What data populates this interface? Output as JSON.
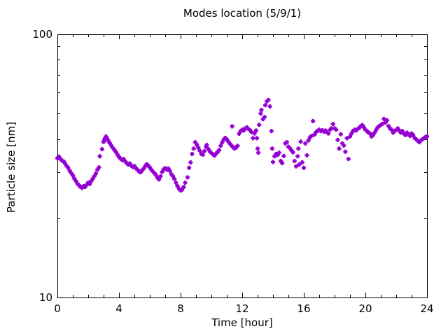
{
  "figure": {
    "background_color": "#ffffff",
    "axis_color": "#000000"
  },
  "chart_data": {
    "type": "scatter",
    "title": "Modes location (5/9/1)",
    "xlabel": "Time [hour]",
    "ylabel": "Particle size [nm]",
    "x_range": [
      0,
      24
    ],
    "y_range": [
      10,
      100
    ],
    "y_scale": "log",
    "x_major_ticks": [
      0,
      4,
      8,
      12,
      16,
      20,
      24
    ],
    "x_minor_step": 1,
    "y_major_ticks": [
      10,
      100
    ],
    "y_minor_ticks": [
      20,
      30,
      40,
      50,
      60,
      70,
      80,
      90
    ],
    "grid": false,
    "legend": "none",
    "marker": {
      "shape": "plus",
      "color": "#9400D3",
      "size": 6
    },
    "series": [
      {
        "name": "mode-diameter",
        "points": [
          [
            0.0,
            33.8
          ],
          [
            0.1,
            34.3
          ],
          [
            0.2,
            33.6
          ],
          [
            0.3,
            33.1
          ],
          [
            0.4,
            32.9
          ],
          [
            0.5,
            32.3
          ],
          [
            0.6,
            31.6
          ],
          [
            0.7,
            31.1
          ],
          [
            0.8,
            30.3
          ],
          [
            0.9,
            29.7
          ],
          [
            1.0,
            29.1
          ],
          [
            1.1,
            28.3
          ],
          [
            1.2,
            27.7
          ],
          [
            1.3,
            27.1
          ],
          [
            1.4,
            26.7
          ],
          [
            1.5,
            26.3
          ],
          [
            1.6,
            26.1
          ],
          [
            1.7,
            26.5
          ],
          [
            1.8,
            26.3
          ],
          [
            1.9,
            26.8
          ],
          [
            2.0,
            27.3
          ],
          [
            2.1,
            27.0
          ],
          [
            2.2,
            27.7
          ],
          [
            2.3,
            28.3
          ],
          [
            2.4,
            28.9
          ],
          [
            2.5,
            29.6
          ],
          [
            2.6,
            30.6
          ],
          [
            2.7,
            31.2
          ],
          [
            2.75,
            34.4
          ],
          [
            2.9,
            36.6
          ],
          [
            3.0,
            39.0
          ],
          [
            3.05,
            39.8
          ],
          [
            3.1,
            40.3
          ],
          [
            3.15,
            40.9
          ],
          [
            3.2,
            40.5
          ],
          [
            3.25,
            39.9
          ],
          [
            3.3,
            39.4
          ],
          [
            3.4,
            38.6
          ],
          [
            3.5,
            37.8
          ],
          [
            3.6,
            37.0
          ],
          [
            3.7,
            36.4
          ],
          [
            3.8,
            35.7
          ],
          [
            3.9,
            34.9
          ],
          [
            4.0,
            34.2
          ],
          [
            4.1,
            33.7
          ],
          [
            4.2,
            33.3
          ],
          [
            4.3,
            33.6
          ],
          [
            4.4,
            32.9
          ],
          [
            4.5,
            32.4
          ],
          [
            4.6,
            32.0
          ],
          [
            4.7,
            32.3
          ],
          [
            4.8,
            31.7
          ],
          [
            4.9,
            31.3
          ],
          [
            5.0,
            31.6
          ],
          [
            5.1,
            31.0
          ],
          [
            5.2,
            30.6
          ],
          [
            5.3,
            30.1
          ],
          [
            5.4,
            29.9
          ],
          [
            5.5,
            30.4
          ],
          [
            5.6,
            30.9
          ],
          [
            5.7,
            31.5
          ],
          [
            5.8,
            32.1
          ],
          [
            5.9,
            31.7
          ],
          [
            6.0,
            31.2
          ],
          [
            6.1,
            30.6
          ],
          [
            6.2,
            30.1
          ],
          [
            6.3,
            29.7
          ],
          [
            6.4,
            29.2
          ],
          [
            6.5,
            28.5
          ],
          [
            6.6,
            28.1
          ],
          [
            6.7,
            28.9
          ],
          [
            6.8,
            30.0
          ],
          [
            6.9,
            30.7
          ],
          [
            7.0,
            31.0
          ],
          [
            7.1,
            30.6
          ],
          [
            7.2,
            30.9
          ],
          [
            7.3,
            30.3
          ],
          [
            7.4,
            29.4
          ],
          [
            7.5,
            28.9
          ],
          [
            7.6,
            28.2
          ],
          [
            7.7,
            27.3
          ],
          [
            7.8,
            26.5
          ],
          [
            7.9,
            25.9
          ],
          [
            8.0,
            25.5
          ],
          [
            8.1,
            25.7
          ],
          [
            8.2,
            26.3
          ],
          [
            8.3,
            27.3
          ],
          [
            8.45,
            28.6
          ],
          [
            8.55,
            31.1
          ],
          [
            8.65,
            32.6
          ],
          [
            8.75,
            35.1
          ],
          [
            8.85,
            36.8
          ],
          [
            8.95,
            38.9
          ],
          [
            9.05,
            38.1
          ],
          [
            9.15,
            37.1
          ],
          [
            9.25,
            36.1
          ],
          [
            9.35,
            35.1
          ],
          [
            9.45,
            34.9
          ],
          [
            9.55,
            36.0
          ],
          [
            9.65,
            37.4
          ],
          [
            9.7,
            38.0
          ],
          [
            9.8,
            36.7
          ],
          [
            9.9,
            35.9
          ],
          [
            10.0,
            35.4
          ],
          [
            10.1,
            35.0
          ],
          [
            10.2,
            34.6
          ],
          [
            10.3,
            35.2
          ],
          [
            10.4,
            35.7
          ],
          [
            10.5,
            36.3
          ],
          [
            10.6,
            37.7
          ],
          [
            10.7,
            38.8
          ],
          [
            10.8,
            39.8
          ],
          [
            10.9,
            40.4
          ],
          [
            11.0,
            39.9
          ],
          [
            11.1,
            39.1
          ],
          [
            11.2,
            38.4
          ],
          [
            11.3,
            37.8
          ],
          [
            11.35,
            44.7
          ],
          [
            11.4,
            37.3
          ],
          [
            11.5,
            36.8
          ],
          [
            11.6,
            37.1
          ],
          [
            11.7,
            37.7
          ],
          [
            11.8,
            41.9
          ],
          [
            11.9,
            42.9
          ],
          [
            12.0,
            43.4
          ],
          [
            12.1,
            43.1
          ],
          [
            12.2,
            43.9
          ],
          [
            12.3,
            44.3
          ],
          [
            12.4,
            43.7
          ],
          [
            12.5,
            43.3
          ],
          [
            12.6,
            42.5
          ],
          [
            12.7,
            40.3
          ],
          [
            12.8,
            42.0
          ],
          [
            12.9,
            43.1
          ],
          [
            12.95,
            40.3
          ],
          [
            13.0,
            36.8
          ],
          [
            13.05,
            35.5
          ],
          [
            13.1,
            45.3
          ],
          [
            13.2,
            50.0
          ],
          [
            13.25,
            51.6
          ],
          [
            13.35,
            47.6
          ],
          [
            13.45,
            48.5
          ],
          [
            13.5,
            53.8
          ],
          [
            13.6,
            55.6
          ],
          [
            13.7,
            56.3
          ],
          [
            13.8,
            53.2
          ],
          [
            13.9,
            42.9
          ],
          [
            13.95,
            36.8
          ],
          [
            14.0,
            32.7
          ],
          [
            14.1,
            34.4
          ],
          [
            14.2,
            35.1
          ],
          [
            14.3,
            34.8
          ],
          [
            14.4,
            35.5
          ],
          [
            14.5,
            33.0
          ],
          [
            14.6,
            32.4
          ],
          [
            14.7,
            34.5
          ],
          [
            14.8,
            38.5
          ],
          [
            14.9,
            38.9
          ],
          [
            15.0,
            37.4
          ],
          [
            15.1,
            36.9
          ],
          [
            15.2,
            36.2
          ],
          [
            15.3,
            35.6
          ],
          [
            15.4,
            33.0
          ],
          [
            15.5,
            31.5
          ],
          [
            15.6,
            34.4
          ],
          [
            15.65,
            36.8
          ],
          [
            15.7,
            32.0
          ],
          [
            15.8,
            39.1
          ],
          [
            15.9,
            32.6
          ],
          [
            16.0,
            31.1
          ],
          [
            16.1,
            38.5
          ],
          [
            16.2,
            34.7
          ],
          [
            16.3,
            39.5
          ],
          [
            16.4,
            40.6
          ],
          [
            16.5,
            41.1
          ],
          [
            16.6,
            46.8
          ],
          [
            16.7,
            41.6
          ],
          [
            16.8,
            42.5
          ],
          [
            16.9,
            43.0
          ],
          [
            17.0,
            43.4
          ],
          [
            17.1,
            42.9
          ],
          [
            17.2,
            43.2
          ],
          [
            17.3,
            42.7
          ],
          [
            17.4,
            43.1
          ],
          [
            17.5,
            42.4
          ],
          [
            17.6,
            42.0
          ],
          [
            17.7,
            43.4
          ],
          [
            17.8,
            43.9
          ],
          [
            17.9,
            45.6
          ],
          [
            18.0,
            43.9
          ],
          [
            18.1,
            43.4
          ],
          [
            18.2,
            39.7
          ],
          [
            18.3,
            36.8
          ],
          [
            18.4,
            41.7
          ],
          [
            18.5,
            38.5
          ],
          [
            18.6,
            37.8
          ],
          [
            18.7,
            35.8
          ],
          [
            18.8,
            40.3
          ],
          [
            18.9,
            33.6
          ],
          [
            19.0,
            40.9
          ],
          [
            19.1,
            42.0
          ],
          [
            19.2,
            42.9
          ],
          [
            19.3,
            43.4
          ],
          [
            19.4,
            43.1
          ],
          [
            19.5,
            43.7
          ],
          [
            19.6,
            44.1
          ],
          [
            19.7,
            44.8
          ],
          [
            19.8,
            45.2
          ],
          [
            19.9,
            44.3
          ],
          [
            20.0,
            43.4
          ],
          [
            20.1,
            42.9
          ],
          [
            20.2,
            42.3
          ],
          [
            20.3,
            42.0
          ],
          [
            20.4,
            40.9
          ],
          [
            20.5,
            41.4
          ],
          [
            20.6,
            42.3
          ],
          [
            20.7,
            43.4
          ],
          [
            20.8,
            44.3
          ],
          [
            20.9,
            44.8
          ],
          [
            21.0,
            45.2
          ],
          [
            21.1,
            45.7
          ],
          [
            21.2,
            47.7
          ],
          [
            21.3,
            46.2
          ],
          [
            21.4,
            47.1
          ],
          [
            21.5,
            44.8
          ],
          [
            21.6,
            43.9
          ],
          [
            21.7,
            43.4
          ],
          [
            21.8,
            42.3
          ],
          [
            21.9,
            42.9
          ],
          [
            22.0,
            43.4
          ],
          [
            22.1,
            43.9
          ],
          [
            22.2,
            43.1
          ],
          [
            22.3,
            42.3
          ],
          [
            22.4,
            42.9
          ],
          [
            22.5,
            42.0
          ],
          [
            22.6,
            41.4
          ],
          [
            22.7,
            42.3
          ],
          [
            22.8,
            41.7
          ],
          [
            22.9,
            41.1
          ],
          [
            23.0,
            42.0
          ],
          [
            23.1,
            41.4
          ],
          [
            23.2,
            40.3
          ],
          [
            23.3,
            39.9
          ],
          [
            23.4,
            39.4
          ],
          [
            23.5,
            38.9
          ],
          [
            23.6,
            39.5
          ],
          [
            23.7,
            39.9
          ],
          [
            23.8,
            40.3
          ],
          [
            23.9,
            40.7
          ],
          [
            24.0,
            40.9
          ]
        ]
      }
    ]
  }
}
